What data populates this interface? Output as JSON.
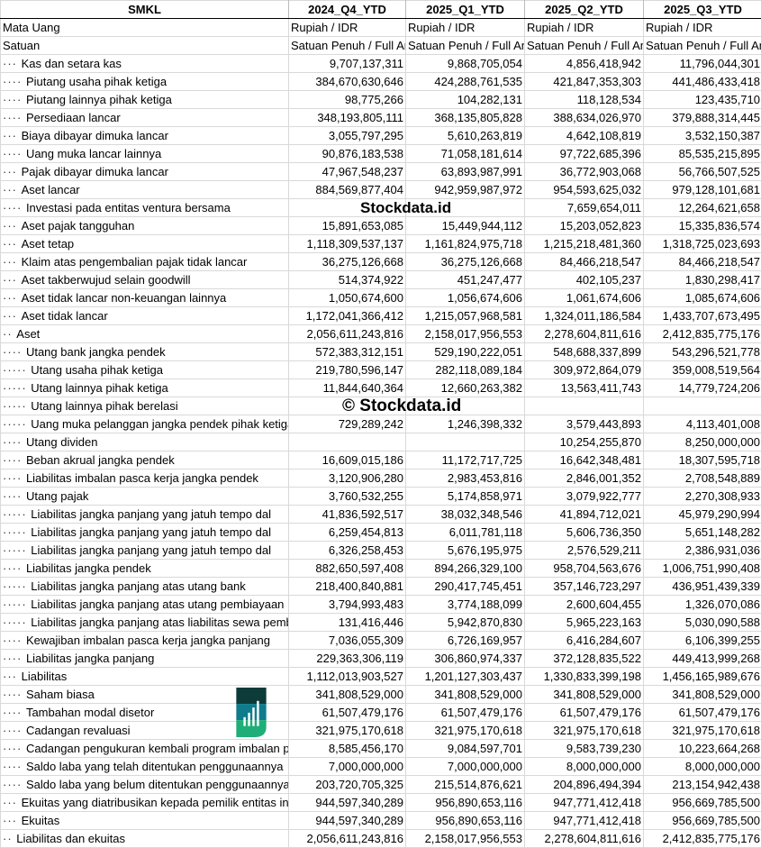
{
  "header": {
    "ticker": "SMKL",
    "periods": [
      "2024_Q4_YTD",
      "2025_Q1_YTD",
      "2025_Q2_YTD",
      "2025_Q3_YTD"
    ]
  },
  "meta_rows": [
    {
      "label": "Mata Uang",
      "values": [
        "Rupiah / IDR",
        "Rupiah / IDR",
        "Rupiah / IDR",
        "Rupiah / IDR"
      ]
    },
    {
      "label": "Satuan",
      "values": [
        "Satuan Penuh / Full Amount",
        "Satuan Penuh / Full Amount",
        "Satuan Penuh / Full Amount",
        "Satuan Penuh / Full Amount"
      ]
    }
  ],
  "rows": [
    {
      "level": 3,
      "label": "Kas dan setara kas",
      "values": [
        "9,707,137,311",
        "9,868,705,054",
        "4,856,418,942",
        "11,796,044,301"
      ]
    },
    {
      "level": 4,
      "label": "Piutang usaha pihak ketiga",
      "values": [
        "384,670,630,646",
        "424,288,761,535",
        "421,847,353,303",
        "441,486,433,418"
      ]
    },
    {
      "level": 4,
      "label": "Piutang lainnya pihak ketiga",
      "values": [
        "98,775,266",
        "104,282,131",
        "118,128,534",
        "123,435,710"
      ]
    },
    {
      "level": 4,
      "label": "Persediaan lancar",
      "values": [
        "348,193,805,111",
        "368,135,805,828",
        "388,634,026,970",
        "379,888,314,445"
      ]
    },
    {
      "level": 3,
      "label": "Biaya dibayar dimuka lancar",
      "values": [
        "3,055,797,295",
        "5,610,263,819",
        "4,642,108,819",
        "3,532,150,387"
      ]
    },
    {
      "level": 4,
      "label": "Uang muka lancar lainnya",
      "values": [
        "90,876,183,538",
        "71,058,181,614",
        "97,722,685,396",
        "85,535,215,895"
      ]
    },
    {
      "level": 3,
      "label": "Pajak dibayar dimuka lancar",
      "values": [
        "47,967,548,237",
        "63,893,987,991",
        "36,772,903,068",
        "56,766,507,525"
      ]
    },
    {
      "level": 3,
      "label": "Aset lancar",
      "values": [
        "884,569,877,404",
        "942,959,987,972",
        "954,593,625,032",
        "979,128,101,681"
      ]
    },
    {
      "level": 4,
      "label": "Investasi pada entitas ventura bersama",
      "values": [
        "",
        "",
        "7,659,654,011",
        "12,264,621,658"
      ]
    },
    {
      "level": 3,
      "label": "Aset pajak tangguhan",
      "values": [
        "15,891,653,085",
        "15,449,944,112",
        "15,203,052,823",
        "15,335,836,574"
      ]
    },
    {
      "level": 3,
      "label": "Aset tetap",
      "values": [
        "1,118,309,537,137",
        "1,161,824,975,718",
        "1,215,218,481,360",
        "1,318,725,023,693"
      ]
    },
    {
      "level": 3,
      "label": "Klaim atas pengembalian pajak tidak lancar",
      "values": [
        "36,275,126,668",
        "36,275,126,668",
        "84,466,218,547",
        "84,466,218,547"
      ]
    },
    {
      "level": 3,
      "label": "Aset takberwujud selain goodwill",
      "values": [
        "514,374,922",
        "451,247,477",
        "402,105,237",
        "1,830,298,417"
      ]
    },
    {
      "level": 3,
      "label": "Aset tidak lancar non-keuangan lainnya",
      "values": [
        "1,050,674,600",
        "1,056,674,606",
        "1,061,674,606",
        "1,085,674,606"
      ]
    },
    {
      "level": 3,
      "label": "Aset tidak lancar",
      "values": [
        "1,172,041,366,412",
        "1,215,057,968,581",
        "1,324,011,186,584",
        "1,433,707,673,495"
      ]
    },
    {
      "level": 2,
      "label": "Aset",
      "values": [
        "2,056,611,243,816",
        "2,158,017,956,553",
        "2,278,604,811,616",
        "2,412,835,775,176"
      ]
    },
    {
      "level": 4,
      "label": "Utang bank jangka pendek",
      "values": [
        "572,383,312,151",
        "529,190,222,051",
        "548,688,337,899",
        "543,296,521,778"
      ]
    },
    {
      "level": 5,
      "label": "Utang usaha pihak ketiga",
      "values": [
        "219,780,596,147",
        "282,118,089,184",
        "309,972,864,079",
        "359,008,519,564"
      ]
    },
    {
      "level": 5,
      "label": "Utang lainnya pihak ketiga",
      "values": [
        "11,844,640,364",
        "12,660,263,382",
        "13,563,411,743",
        "14,779,724,206"
      ]
    },
    {
      "level": 5,
      "label": "Utang lainnya pihak berelasi",
      "values": [
        "",
        "",
        "",
        ""
      ]
    },
    {
      "level": 5,
      "label": "Uang muka pelanggan jangka pendek pihak ketiga",
      "values": [
        "729,289,242",
        "1,246,398,332",
        "3,579,443,893",
        "4,113,401,008"
      ]
    },
    {
      "level": 4,
      "label": "Utang dividen",
      "values": [
        "",
        "",
        "10,254,255,870",
        "8,250,000,000"
      ]
    },
    {
      "level": 4,
      "label": "Beban akrual jangka pendek",
      "values": [
        "16,609,015,186",
        "11,172,717,725",
        "16,642,348,481",
        "18,307,595,718"
      ]
    },
    {
      "level": 4,
      "label": "Liabilitas imbalan pasca kerja jangka pendek",
      "values": [
        "3,120,906,280",
        "2,983,453,816",
        "2,846,001,352",
        "2,708,548,889"
      ]
    },
    {
      "level": 4,
      "label": "Utang pajak",
      "values": [
        "3,760,532,255",
        "5,174,858,971",
        "3,079,922,777",
        "2,270,308,933"
      ]
    },
    {
      "level": 5,
      "label": "Liabilitas jangka panjang yang jatuh tempo dal",
      "values": [
        "41,836,592,517",
        "38,032,348,546",
        "41,894,712,021",
        "45,979,290,994"
      ]
    },
    {
      "level": 5,
      "label": "Liabilitas jangka panjang yang jatuh tempo dal",
      "values": [
        "6,259,454,813",
        "6,011,781,118",
        "5,606,736,350",
        "5,651,148,282"
      ]
    },
    {
      "level": 5,
      "label": "Liabilitas jangka panjang yang jatuh tempo dal",
      "values": [
        "6,326,258,453",
        "5,676,195,975",
        "2,576,529,211",
        "2,386,931,036"
      ]
    },
    {
      "level": 4,
      "label": "Liabilitas jangka pendek",
      "values": [
        "882,650,597,408",
        "894,266,329,100",
        "958,704,563,676",
        "1,006,751,990,408"
      ]
    },
    {
      "level": 5,
      "label": "Liabilitas jangka panjang atas utang bank",
      "values": [
        "218,400,840,881",
        "290,417,745,451",
        "357,146,723,297",
        "436,951,439,339"
      ]
    },
    {
      "level": 5,
      "label": "Liabilitas jangka panjang atas utang pembiayaan",
      "values": [
        "3,794,993,483",
        "3,774,188,099",
        "2,600,604,455",
        "1,326,070,086"
      ]
    },
    {
      "level": 5,
      "label": "Liabilitas jangka panjang atas liabilitas sewa pembiayaan",
      "values": [
        "131,416,446",
        "5,942,870,830",
        "5,965,223,163",
        "5,030,090,588"
      ]
    },
    {
      "level": 4,
      "label": "Kewajiban imbalan pasca kerja jangka panjang",
      "values": [
        "7,036,055,309",
        "6,726,169,957",
        "6,416,284,607",
        "6,106,399,255"
      ]
    },
    {
      "level": 4,
      "label": "Liabilitas jangka panjang",
      "values": [
        "229,363,306,119",
        "306,860,974,337",
        "372,128,835,522",
        "449,413,999,268"
      ]
    },
    {
      "level": 3,
      "label": "Liabilitas",
      "values": [
        "1,112,013,903,527",
        "1,201,127,303,437",
        "1,330,833,399,198",
        "1,456,165,989,676"
      ]
    },
    {
      "level": 4,
      "label": "Saham biasa",
      "values": [
        "341,808,529,000",
        "341,808,529,000",
        "341,808,529,000",
        "341,808,529,000"
      ]
    },
    {
      "level": 4,
      "label": "Tambahan modal disetor",
      "values": [
        "61,507,479,176",
        "61,507,479,176",
        "61,507,479,176",
        "61,507,479,176"
      ]
    },
    {
      "level": 4,
      "label": "Cadangan revaluasi",
      "values": [
        "321,975,170,618",
        "321,975,170,618",
        "321,975,170,618",
        "321,975,170,618"
      ]
    },
    {
      "level": 4,
      "label": "Cadangan pengukuran kembali program imbalan pasti",
      "values": [
        "8,585,456,170",
        "9,084,597,701",
        "9,583,739,230",
        "10,223,664,268"
      ]
    },
    {
      "level": 4,
      "label": "Saldo laba yang telah ditentukan penggunaannya",
      "values": [
        "7,000,000,000",
        "7,000,000,000",
        "8,000,000,000",
        "8,000,000,000"
      ]
    },
    {
      "level": 4,
      "label": "Saldo laba yang belum ditentukan penggunaannya",
      "values": [
        "203,720,705,325",
        "215,514,876,621",
        "204,896,494,394",
        "213,154,942,438"
      ]
    },
    {
      "level": 3,
      "label": "Ekuitas yang diatribusikan kepada pemilik entitas induk",
      "values": [
        "944,597,340,289",
        "956,890,653,116",
        "947,771,412,418",
        "956,669,785,500"
      ]
    },
    {
      "level": 3,
      "label": "Ekuitas",
      "values": [
        "944,597,340,289",
        "956,890,653,116",
        "947,771,412,418",
        "956,669,785,500"
      ]
    },
    {
      "level": 2,
      "label": "Liabilitas dan ekuitas",
      "values": [
        "2,056,611,243,816",
        "2,158,017,956,553",
        "2,278,604,811,616",
        "2,412,835,775,176"
      ]
    }
  ],
  "watermark": {
    "overlay_text": "© Stockdata.id",
    "brand_text": "Stockdata.id",
    "colors": {
      "dark": "#0d3b3a",
      "mid": "#0f7c8c",
      "light": "#1fae78"
    }
  }
}
